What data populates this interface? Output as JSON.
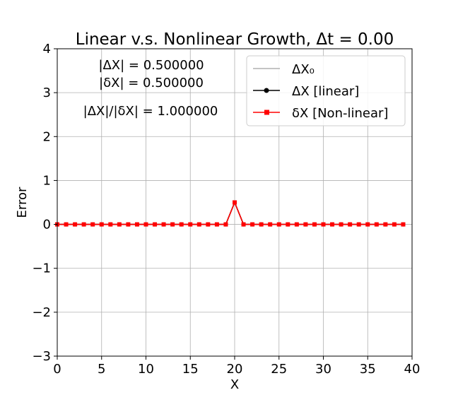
{
  "chart_data": {
    "type": "line",
    "title": "Linear v.s. Nonlinear Growth, Δt = 0.00",
    "xlabel": "X",
    "ylabel": "Error",
    "xlim": [
      0,
      40
    ],
    "ylim": [
      -3,
      4
    ],
    "xticks": [
      0,
      5,
      10,
      15,
      20,
      25,
      30,
      35,
      40
    ],
    "yticks": [
      -3,
      -2,
      -1,
      0,
      1,
      2,
      3,
      4
    ],
    "xtick_labels": [
      "0",
      "5",
      "10",
      "15",
      "20",
      "25",
      "30",
      "35",
      "40"
    ],
    "ytick_labels": [
      "−3",
      "−2",
      "−1",
      "0",
      "1",
      "2",
      "3",
      "4"
    ],
    "grid": true,
    "legend_position": "top-right",
    "annotations": [
      "|ΔX| = 0.500000",
      "|δX| = 0.500000",
      "|ΔX|/|δX| = 1.000000"
    ],
    "x": [
      0,
      1,
      2,
      3,
      4,
      5,
      6,
      7,
      8,
      9,
      10,
      11,
      12,
      13,
      14,
      15,
      16,
      17,
      18,
      19,
      20,
      21,
      22,
      23,
      24,
      25,
      26,
      27,
      28,
      29,
      30,
      31,
      32,
      33,
      34,
      35,
      36,
      37,
      38,
      39
    ],
    "series": [
      {
        "name": "ΔX₀",
        "color": "#b0b0b0",
        "marker": "none",
        "values": [
          0,
          0,
          0,
          0,
          0,
          0,
          0,
          0,
          0,
          0,
          0,
          0,
          0,
          0,
          0,
          0,
          0,
          0,
          0,
          0,
          0.5,
          0,
          0,
          0,
          0,
          0,
          0,
          0,
          0,
          0,
          0,
          0,
          0,
          0,
          0,
          0,
          0,
          0,
          0,
          0
        ]
      },
      {
        "name": "ΔX [linear]",
        "color": "#000000",
        "marker": "circle",
        "values": [
          0,
          0,
          0,
          0,
          0,
          0,
          0,
          0,
          0,
          0,
          0,
          0,
          0,
          0,
          0,
          0,
          0,
          0,
          0,
          0,
          0.5,
          0,
          0,
          0,
          0,
          0,
          0,
          0,
          0,
          0,
          0,
          0,
          0,
          0,
          0,
          0,
          0,
          0,
          0,
          0
        ]
      },
      {
        "name": "δX [Non-linear]",
        "color": "#ff0000",
        "marker": "square",
        "values": [
          0,
          0,
          0,
          0,
          0,
          0,
          0,
          0,
          0,
          0,
          0,
          0,
          0,
          0,
          0,
          0,
          0,
          0,
          0,
          0,
          0.5,
          0,
          0,
          0,
          0,
          0,
          0,
          0,
          0,
          0,
          0,
          0,
          0,
          0,
          0,
          0,
          0,
          0,
          0,
          0
        ]
      }
    ]
  }
}
